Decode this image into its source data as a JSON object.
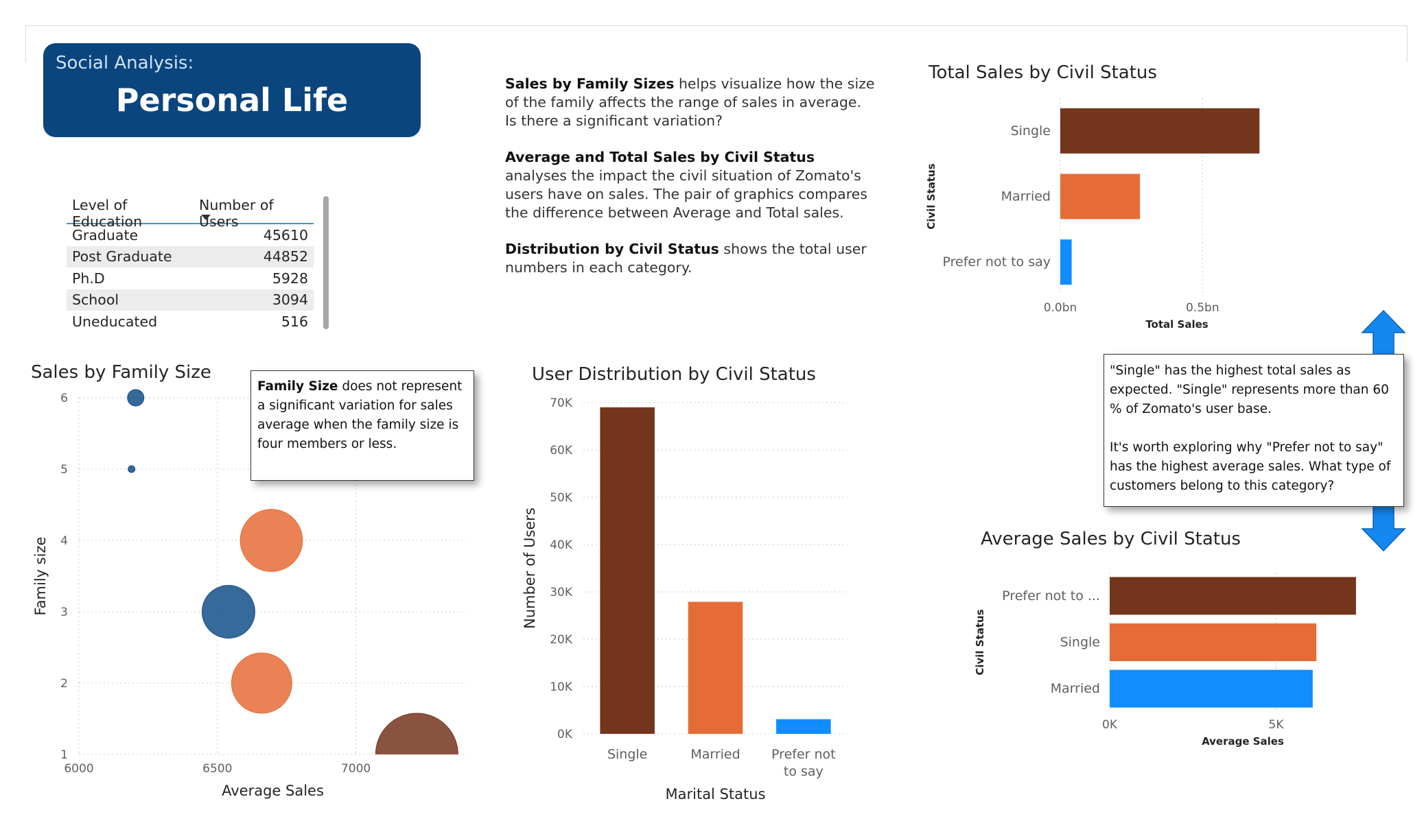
{
  "banner": {
    "subtitle": "Social Analysis:",
    "title": "Personal Life"
  },
  "description": [
    {
      "bold": "Sales by Family Sizes",
      "text": " helps visualize how the size of the family affects the range of sales in average. Is there a significant variation?"
    },
    {
      "bold": "Average and Total Sales by Civil Status",
      "text": " analyses the impact the civil situation of Zomato's users have on sales. The pair of graphics compares the difference between Average and Total sales."
    },
    {
      "bold": "Distribution by Civil Status",
      "text": " shows the total user numbers in each category."
    }
  ],
  "education_table": {
    "headers": [
      "Level of Education",
      "Number of Users"
    ],
    "rows": [
      [
        "Graduate",
        "45610"
      ],
      [
        "Post Graduate",
        "44852"
      ],
      [
        "Ph.D",
        "5928"
      ],
      [
        "School",
        "3094"
      ],
      [
        "Uneducated",
        "516"
      ]
    ]
  },
  "notes": {
    "family": {
      "bold": "Family Size",
      "text": " does not represent a significant variation for sales average when the family size is four members or less."
    },
    "civil": [
      "\"Single\" has the highest total sales as  expected. \"Single\" represents  more than 60 % of Zomato's user base.",
      " It's worth exploring why \"Prefer not to say\" has the highest average sales. What type of customers belong to this category?"
    ]
  },
  "colors": {
    "brown": "#74351d",
    "orange": "#e66c37",
    "blue": "#118dff",
    "navy": "#0a457e",
    "scatter_blue": "#12508a",
    "scatter_brown": "#74351d"
  },
  "chart_data": [
    {
      "id": "family",
      "type": "scatter",
      "title": "Sales by Family Size",
      "xlabel": "Average Sales",
      "ylabel": "Family size",
      "xlim": [
        6000,
        7400
      ],
      "ylim": [
        1,
        6
      ],
      "xticks": [
        6000,
        6500,
        7000
      ],
      "yticks": [
        1,
        2,
        3,
        4,
        5,
        6
      ],
      "points": [
        {
          "x": 6205,
          "y": 6,
          "size": 7,
          "color": "#12508a"
        },
        {
          "x": 6190,
          "y": 5,
          "size": 1,
          "color": "#12508a"
        },
        {
          "x": 6695,
          "y": 4,
          "size": 100,
          "color": "#e66c37"
        },
        {
          "x": 6540,
          "y": 3,
          "size": 72,
          "color": "#12508a"
        },
        {
          "x": 6660,
          "y": 2,
          "size": 94,
          "color": "#e66c37"
        },
        {
          "x": 7220,
          "y": 1,
          "size": 175,
          "color": "#74351d"
        }
      ]
    },
    {
      "id": "dist",
      "type": "bar",
      "title": "User Distribution by Civil Status",
      "xlabel": "Marital Status",
      "ylabel": "Number of Users",
      "ylim": [
        0,
        70000
      ],
      "yticks": [
        0,
        10000,
        20000,
        30000,
        40000,
        50000,
        60000,
        70000
      ],
      "ytick_labels": [
        "0K",
        "10K",
        "20K",
        "30K",
        "40K",
        "50K",
        "60K",
        "70K"
      ],
      "categories": [
        "Single",
        "Married",
        "Prefer not to say"
      ],
      "category_lines": [
        [
          "Single"
        ],
        [
          "Married"
        ],
        [
          "Prefer not",
          "to say"
        ]
      ],
      "values": [
        69000,
        27900,
        3100
      ],
      "colors": [
        "#74351d",
        "#e66c37",
        "#118dff"
      ]
    },
    {
      "id": "total",
      "type": "bar",
      "orientation": "horizontal",
      "title": "Total Sales by Civil Status",
      "xlabel": "Total Sales",
      "ylabel": "Civil Status",
      "xlim": [
        0,
        0.82
      ],
      "xticks": [
        0,
        0.5
      ],
      "xtick_labels": [
        "0.0bn",
        "0.5bn"
      ],
      "categories": [
        "Single",
        "Married",
        "Prefer not to say"
      ],
      "values": [
        0.7,
        0.28,
        0.04
      ],
      "colors": [
        "#74351d",
        "#e66c37",
        "#118dff"
      ]
    },
    {
      "id": "avg",
      "type": "bar",
      "orientation": "horizontal",
      "title": "Average Sales by Civil Status",
      "xlabel": "Average Sales",
      "ylabel": "Civil Status",
      "xlim": [
        0,
        8000
      ],
      "xticks": [
        0,
        5000
      ],
      "xtick_labels": [
        "0K",
        "5K"
      ],
      "categories": [
        "Prefer not to ...",
        "Single",
        "Married"
      ],
      "values": [
        7400,
        6210,
        6100
      ],
      "colors": [
        "#74351d",
        "#e66c37",
        "#118dff"
      ]
    }
  ]
}
